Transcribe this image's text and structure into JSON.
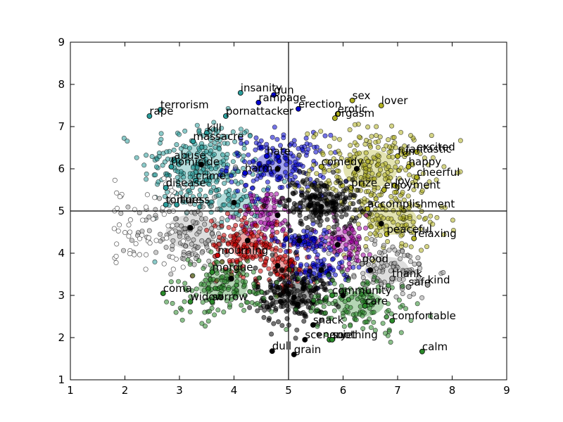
{
  "chart_data": {
    "type": "scatter",
    "title": "",
    "xlabel": "",
    "ylabel": "",
    "xlim": [
      1,
      9
    ],
    "ylim": [
      1,
      9
    ],
    "xticks": [
      "1",
      "2",
      "3",
      "4",
      "5",
      "6",
      "7",
      "8",
      "9"
    ],
    "yticks": [
      "1",
      "2",
      "3",
      "4",
      "5",
      "6",
      "7",
      "8",
      "9"
    ],
    "reference_lines": {
      "x": 5,
      "y": 5
    },
    "grid": false,
    "legend": "none",
    "clusters": [
      {
        "color": "#2a9d9b",
        "center": [
          3.4,
          6.1
        ],
        "spread": [
          0.55,
          0.55
        ],
        "n": 230
      },
      {
        "color": "#2a9d9b",
        "center": [
          4.0,
          5.2
        ],
        "spread": [
          0.35,
          0.3
        ],
        "n": 60
      },
      {
        "color": "#0000d0",
        "center": [
          4.8,
          6.1
        ],
        "spread": [
          0.45,
          0.35
        ],
        "n": 170
      },
      {
        "color": "#b0b020",
        "center": [
          6.5,
          6.0
        ],
        "spread": [
          0.55,
          0.5
        ],
        "n": 230
      },
      {
        "color": "#b0b020",
        "center": [
          6.9,
          4.8
        ],
        "spread": [
          0.5,
          0.4
        ],
        "n": 120
      },
      {
        "color": "#a0a0a0",
        "center": [
          3.2,
          4.5
        ],
        "spread": [
          0.5,
          0.45
        ],
        "n": 140
      },
      {
        "color": "#a0a0a0",
        "center": [
          6.8,
          3.6
        ],
        "spread": [
          0.45,
          0.35
        ],
        "n": 110
      },
      {
        "color": "#a000a0",
        "center": [
          4.6,
          4.9
        ],
        "spread": [
          0.25,
          0.3
        ],
        "n": 80
      },
      {
        "color": "#a000a0",
        "center": [
          6.0,
          4.3
        ],
        "spread": [
          0.3,
          0.3
        ],
        "n": 80
      },
      {
        "color": "#cc0000",
        "center": [
          4.2,
          4.2
        ],
        "spread": [
          0.3,
          0.35
        ],
        "n": 130
      },
      {
        "color": "#cc0000",
        "center": [
          4.9,
          3.7
        ],
        "spread": [
          0.25,
          0.3
        ],
        "n": 80
      },
      {
        "color": "#0000d0",
        "center": [
          5.3,
          4.3
        ],
        "spread": [
          0.25,
          0.15
        ],
        "n": 70
      },
      {
        "color": "#0000d0",
        "center": [
          5.6,
          3.6
        ],
        "spread": [
          0.3,
          0.2
        ],
        "n": 70
      },
      {
        "color": "#000000",
        "center": [
          5.6,
          5.2
        ],
        "spread": [
          0.35,
          0.3
        ],
        "n": 200
      },
      {
        "color": "#000000",
        "center": [
          5.1,
          3.0
        ],
        "spread": [
          0.35,
          0.35
        ],
        "n": 220
      },
      {
        "color": "#2a8a2a",
        "center": [
          3.8,
          3.2
        ],
        "spread": [
          0.5,
          0.35
        ],
        "n": 150
      },
      {
        "color": "#2a8a2a",
        "center": [
          6.3,
          2.8
        ],
        "spread": [
          0.5,
          0.35
        ],
        "n": 140
      }
    ],
    "centroids": [
      [
        3.4,
        6.1
      ],
      [
        4.8,
        6.0
      ],
      [
        6.25,
        6.0
      ],
      [
        4.0,
        5.2
      ],
      [
        4.8,
        4.9
      ],
      [
        5.6,
        5.1
      ],
      [
        6.7,
        4.7
      ],
      [
        3.2,
        4.6
      ],
      [
        4.25,
        4.3
      ],
      [
        5.2,
        4.3
      ],
      [
        5.9,
        4.2
      ],
      [
        3.95,
        3.4
      ],
      [
        4.8,
        3.7
      ],
      [
        5.6,
        3.6
      ],
      [
        6.5,
        3.6
      ],
      [
        5.1,
        2.95
      ],
      [
        6.0,
        3.0
      ]
    ],
    "points": [
      {
        "label": "insanity",
        "x": 4.12,
        "y": 7.8,
        "color": "#2a9d9b"
      },
      {
        "label": "gun",
        "x": 4.73,
        "y": 7.75,
        "color": "#0000d0"
      },
      {
        "label": "rampage",
        "x": 4.45,
        "y": 7.57,
        "color": "#0000d0"
      },
      {
        "label": "sex",
        "x": 6.17,
        "y": 7.62,
        "color": "#b0b020"
      },
      {
        "label": "lover",
        "x": 6.7,
        "y": 7.5,
        "color": "#b0b020"
      },
      {
        "label": "erection",
        "x": 5.18,
        "y": 7.42,
        "color": "#0000d0"
      },
      {
        "label": "erotic",
        "x": 5.9,
        "y": 7.3,
        "color": "#b0b020"
      },
      {
        "label": "orgasm",
        "x": 5.85,
        "y": 7.2,
        "color": "#b0b020"
      },
      {
        "label": "terrorism",
        "x": 2.65,
        "y": 7.4,
        "color": "#2a9d9b"
      },
      {
        "label": "rape",
        "x": 2.45,
        "y": 7.25,
        "color": "#2a9d9b"
      },
      {
        "label": "pornattacker",
        "x": 3.85,
        "y": 7.25,
        "color": "#2a9d9b"
      },
      {
        "label": "kill",
        "x": 3.5,
        "y": 6.85,
        "color": "#2a9d9b"
      },
      {
        "label": "massacre",
        "x": 3.25,
        "y": 6.65,
        "color": "#2a9d9b"
      },
      {
        "label": "excited",
        "x": 7.35,
        "y": 6.4,
        "color": "#b0b020"
      },
      {
        "label": "fantastic",
        "x": 7.15,
        "y": 6.35,
        "color": "#b0b020"
      },
      {
        "label": "fun",
        "x": 7.0,
        "y": 6.3,
        "color": "#b0b020"
      },
      {
        "label": "hate",
        "x": 4.6,
        "y": 6.3,
        "color": "#0000d0"
      },
      {
        "label": "abuse",
        "x": 2.9,
        "y": 6.2,
        "color": "#2a9d9b"
      },
      {
        "label": "homicide",
        "x": 2.85,
        "y": 6.05,
        "color": "#2a9d9b"
      },
      {
        "label": "comedy",
        "x": 5.6,
        "y": 6.05,
        "color": "#b0b020"
      },
      {
        "label": "happy",
        "x": 7.2,
        "y": 6.05,
        "color": "#b0b020"
      },
      {
        "label": "harm",
        "x": 4.2,
        "y": 5.9,
        "color": "#0000d0"
      },
      {
        "label": "cheerful",
        "x": 7.35,
        "y": 5.8,
        "color": "#b0b020"
      },
      {
        "label": "crime",
        "x": 3.3,
        "y": 5.72,
        "color": "#2a9d9b"
      },
      {
        "label": "disease",
        "x": 2.75,
        "y": 5.55,
        "color": "#2a9d9b"
      },
      {
        "label": "prize",
        "x": 6.15,
        "y": 5.55,
        "color": "#b0b020"
      },
      {
        "label": "joy",
        "x": 6.95,
        "y": 5.6,
        "color": "#b0b020"
      },
      {
        "label": "enjoyment",
        "x": 6.75,
        "y": 5.5,
        "color": "#b0b020"
      },
      {
        "label": "torture",
        "x": 2.75,
        "y": 5.15,
        "color": "#2a9d9b"
      },
      {
        "label": "illness",
        "x": 2.95,
        "y": 5.15,
        "color": "#2a9d9b"
      },
      {
        "label": "accomplishment",
        "x": 6.45,
        "y": 5.05,
        "color": "#b0b020"
      },
      {
        "label": "peaceful",
        "x": 6.8,
        "y": 4.45,
        "color": "#b0b020"
      },
      {
        "label": "relaxing",
        "x": 7.3,
        "y": 4.35,
        "color": "#b0b020"
      },
      {
        "label": "mourning",
        "x": 3.7,
        "y": 3.95,
        "color": "#cc0000"
      },
      {
        "label": "good",
        "x": 6.35,
        "y": 3.75,
        "color": "#a0a0a0"
      },
      {
        "label": "morgue",
        "x": 3.6,
        "y": 3.55,
        "color": "#2a8a2a"
      },
      {
        "label": "thank",
        "x": 6.9,
        "y": 3.4,
        "color": "#a0a0a0"
      },
      {
        "label": "safe",
        "x": 7.2,
        "y": 3.2,
        "color": "#a0a0a0"
      },
      {
        "label": "kind",
        "x": 7.55,
        "y": 3.25,
        "color": "#a0a0a0"
      },
      {
        "label": "coma",
        "x": 2.7,
        "y": 3.05,
        "color": "#2a8a2a"
      },
      {
        "label": "community",
        "x": 5.8,
        "y": 3.0,
        "color": "#2a8a2a"
      },
      {
        "label": "widow",
        "x": 3.2,
        "y": 2.85,
        "color": "#2a8a2a"
      },
      {
        "label": "sorrow",
        "x": 3.6,
        "y": 2.85,
        "color": "#2a8a2a"
      },
      {
        "label": "care",
        "x": 6.4,
        "y": 2.75,
        "color": "#2a8a2a"
      },
      {
        "label": "comfortable",
        "x": 6.9,
        "y": 2.4,
        "color": "#2a8a2a"
      },
      {
        "label": "snack",
        "x": 5.45,
        "y": 2.3,
        "color": "#000000"
      },
      {
        "label": "scenery",
        "x": 5.3,
        "y": 1.95,
        "color": "#000000"
      },
      {
        "label": "quiet",
        "x": 5.75,
        "y": 1.95,
        "color": "#2a8a2a"
      },
      {
        "label": "soothing",
        "x": 5.8,
        "y": 1.95,
        "color": "#2a8a2a"
      },
      {
        "label": "calm",
        "x": 7.45,
        "y": 1.67,
        "color": "#2a8a2a"
      },
      {
        "label": "dull",
        "x": 4.7,
        "y": 1.68,
        "color": "#000000"
      },
      {
        "label": "grain",
        "x": 5.1,
        "y": 1.6,
        "color": "#000000"
      }
    ]
  }
}
